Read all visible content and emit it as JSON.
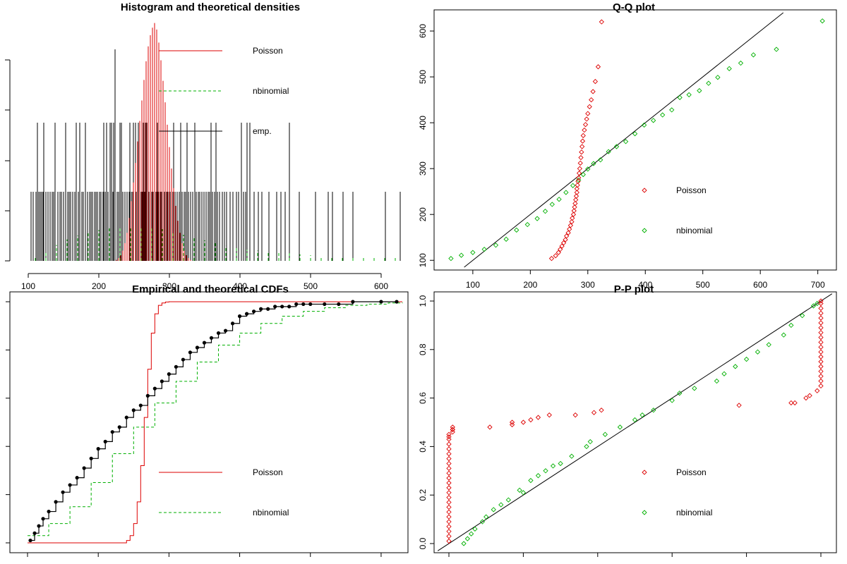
{
  "figure": {
    "panels": [
      {
        "id": "hist",
        "title": "Histogram and theoretical densities"
      },
      {
        "id": "qq",
        "title": "Q-Q plot"
      },
      {
        "id": "cdf",
        "title": "Empirical and theoretical CDFs"
      },
      {
        "id": "pp",
        "title": "P-P plot"
      }
    ]
  },
  "colors": {
    "poisson": "#dd0000",
    "nbinomial": "#00b000",
    "empirical": "#000000"
  },
  "chart_data": [
    {
      "id": "hist",
      "type": "bar",
      "title": "Histogram and theoretical densities",
      "xlim": [
        95,
        630
      ],
      "x_ticks": [
        100,
        200,
        300,
        400,
        500,
        600
      ],
      "y_axis_labels_visible": false,
      "legend": {
        "position": "top-right",
        "entries": [
          {
            "label": "Poisson",
            "style": "solid",
            "color": "#dd0000"
          },
          {
            "label": "nbinomial",
            "style": "dashed",
            "color": "#00b000"
          },
          {
            "label": "emp.",
            "style": "solid",
            "color": "#000000"
          }
        ]
      },
      "empirical_spikes": {
        "height_levels": [
          1,
          2
        ],
        "level2_at": [
          113,
          122,
          138,
          153,
          168,
          173,
          181,
          207,
          211,
          216,
          218,
          221,
          230,
          232,
          244,
          249,
          252,
          256,
          263,
          266,
          268,
          270,
          283,
          291,
          306,
          316,
          325,
          336,
          359,
          366,
          402,
          410,
          414,
          470
        ],
        "level1_at": [
          104,
          107,
          111,
          115,
          117,
          119,
          121,
          125,
          128,
          131,
          134,
          136,
          142,
          145,
          147,
          150,
          156,
          158,
          160,
          163,
          166,
          171,
          176,
          178,
          184,
          187,
          189,
          191,
          194,
          196,
          198,
          201,
          203,
          206,
          209,
          213,
          220,
          223,
          226,
          228,
          234,
          237,
          240,
          243,
          246,
          248,
          253,
          258,
          260,
          262,
          265,
          271,
          273,
          275,
          277,
          279,
          281,
          284,
          287,
          289,
          293,
          296,
          298,
          301,
          303,
          305,
          308,
          311,
          314,
          318,
          321,
          323,
          327,
          330,
          333,
          338,
          341,
          343,
          346,
          349,
          352,
          355,
          357,
          361,
          364,
          368,
          371,
          375,
          378,
          381,
          386,
          390,
          395,
          398,
          405,
          408,
          420,
          426,
          431,
          441,
          452,
          458,
          464,
          470,
          484,
          507,
          525,
          531,
          546,
          560,
          606,
          627
        ]
      },
      "poisson_density": {
        "x": [
          225,
          228,
          231,
          234,
          237,
          240,
          243,
          246,
          249,
          252,
          255,
          258,
          261,
          264,
          267,
          270,
          273,
          276,
          279,
          282,
          285,
          288,
          291,
          294,
          297,
          300,
          303,
          306,
          309,
          312,
          315,
          318,
          321,
          324,
          327,
          330
        ],
        "y": [
          0.01,
          0.03,
          0.06,
          0.11,
          0.19,
          0.3,
          0.46,
          0.64,
          0.84,
          1.05,
          1.28,
          1.5,
          1.72,
          1.94,
          2.14,
          2.3,
          2.42,
          2.5,
          2.55,
          2.48,
          2.34,
          2.15,
          1.93,
          1.7,
          1.46,
          1.22,
          0.99,
          0.78,
          0.59,
          0.43,
          0.3,
          0.19,
          0.11,
          0.06,
          0.03,
          0.01
        ]
      },
      "nbinomial_density": {
        "x": [
          110,
          125,
          140,
          155,
          170,
          185,
          200,
          215,
          230,
          245,
          260,
          275,
          290,
          305,
          320,
          335,
          350,
          365,
          380,
          395,
          410,
          425,
          440,
          455,
          470,
          485,
          500,
          515,
          530,
          545,
          560,
          575,
          590,
          605,
          620
        ],
        "y": [
          0.05,
          0.1,
          0.17,
          0.23,
          0.27,
          0.3,
          0.33,
          0.35,
          0.36,
          0.37,
          0.37,
          0.36,
          0.34,
          0.31,
          0.28,
          0.25,
          0.22,
          0.19,
          0.16,
          0.14,
          0.12,
          0.11,
          0.1,
          0.09,
          0.08,
          0.07,
          0.06,
          0.05,
          0.04,
          0.04,
          0.04,
          0.03,
          0.03,
          0.03,
          0.03
        ]
      }
    },
    {
      "id": "qq",
      "type": "scatter",
      "title": "Q-Q plot",
      "xlim": [
        40,
        725
      ],
      "ylim": [
        85,
        640
      ],
      "x_ticks": [
        100,
        200,
        300,
        400,
        500,
        600,
        700
      ],
      "y_ticks": [
        100,
        200,
        300,
        400,
        500,
        600
      ],
      "reference_line": "y = x",
      "legend": {
        "position": "bottom-right",
        "entries": [
          {
            "label": "Poisson",
            "marker": "diamond",
            "color": "#dd0000"
          },
          {
            "label": "nbinomial",
            "marker": "diamond",
            "color": "#00b000"
          }
        ]
      },
      "series": [
        {
          "name": "Poisson",
          "x": [
            237,
            244,
            249,
            252,
            255,
            258,
            261,
            263,
            266,
            268,
            270,
            272,
            273,
            275,
            276,
            277,
            278,
            279,
            280,
            281,
            281,
            282,
            283,
            284,
            285,
            286,
            287,
            288,
            289,
            290,
            291,
            292,
            294,
            296,
            298,
            300,
            303,
            306,
            309,
            313,
            318,
            324
          ],
          "y": [
            104,
            110,
            117,
            124,
            131,
            138,
            145,
            153,
            160,
            168,
            176,
            184,
            192,
            200,
            208,
            216,
            224,
            232,
            240,
            248,
            256,
            264,
            272,
            280,
            290,
            300,
            312,
            324,
            336,
            348,
            360,
            372,
            384,
            396,
            408,
            420,
            435,
            450,
            468,
            490,
            522,
            620
          ]
        },
        {
          "name": "nbinomial",
          "x": [
            62,
            80,
            100,
            120,
            140,
            158,
            176,
            195,
            212,
            226,
            238,
            250,
            262,
            274,
            284,
            292,
            300,
            310,
            322,
            336,
            350,
            366,
            382,
            398,
            414,
            430,
            446,
            460,
            476,
            494,
            510,
            526,
            546,
            566,
            588,
            628,
            708
          ],
          "y": [
            104,
            111,
            117,
            124,
            133,
            146,
            166,
            178,
            191,
            207,
            222,
            233,
            248,
            263,
            275,
            287,
            299,
            311,
            319,
            337,
            348,
            359,
            376,
            395,
            405,
            417,
            428,
            455,
            461,
            470,
            486,
            499,
            518,
            530,
            548,
            560,
            622
          ]
        }
      ]
    },
    {
      "id": "cdf",
      "type": "line",
      "title": "Empirical and theoretical CDFs",
      "xlim": [
        95,
        630
      ],
      "ylim": [
        0,
        1
      ],
      "x_ticks": [
        100,
        200,
        300,
        400,
        500,
        600
      ],
      "x_tick_labels_visible": false,
      "y_tick_labels_visible": false,
      "legend": {
        "position": "bottom-right",
        "entries": [
          {
            "label": "Poisson",
            "style": "solid",
            "color": "#dd0000"
          },
          {
            "label": "nbinomial",
            "style": "dashed",
            "color": "#00b000"
          }
        ]
      },
      "empirical": {
        "x": [
          104,
          110,
          116,
          122,
          130,
          140,
          150,
          160,
          170,
          180,
          190,
          200,
          210,
          220,
          230,
          240,
          250,
          260,
          270,
          280,
          290,
          300,
          310,
          320,
          330,
          340,
          350,
          360,
          370,
          380,
          390,
          400,
          410,
          420,
          430,
          440,
          450,
          460,
          470,
          480,
          490,
          500,
          520,
          540,
          560,
          600,
          622
        ],
        "y": [
          0.01,
          0.04,
          0.07,
          0.1,
          0.13,
          0.17,
          0.21,
          0.24,
          0.27,
          0.31,
          0.35,
          0.39,
          0.42,
          0.46,
          0.48,
          0.52,
          0.55,
          0.57,
          0.61,
          0.64,
          0.67,
          0.7,
          0.73,
          0.76,
          0.79,
          0.81,
          0.83,
          0.85,
          0.87,
          0.88,
          0.91,
          0.94,
          0.95,
          0.96,
          0.97,
          0.97,
          0.98,
          0.98,
          0.98,
          0.99,
          0.99,
          0.99,
          0.99,
          0.99,
          1.0,
          1.0,
          1.0
        ]
      },
      "poisson_cdf": {
        "x": [
          100,
          240,
          245,
          250,
          255,
          260,
          265,
          270,
          275,
          280,
          285,
          290,
          295,
          300,
          305,
          310,
          630
        ],
        "y": [
          0.0,
          0.01,
          0.03,
          0.08,
          0.17,
          0.32,
          0.52,
          0.72,
          0.87,
          0.95,
          0.985,
          0.995,
          0.999,
          1.0,
          1.0,
          1.0,
          1.0
        ]
      },
      "nbinomial_cdf": {
        "x": [
          100,
          130,
          160,
          190,
          220,
          250,
          280,
          310,
          340,
          370,
          400,
          430,
          460,
          490,
          520,
          550,
          580,
          610,
          630
        ],
        "y": [
          0.03,
          0.08,
          0.15,
          0.25,
          0.37,
          0.48,
          0.58,
          0.67,
          0.75,
          0.82,
          0.87,
          0.91,
          0.94,
          0.96,
          0.975,
          0.985,
          0.99,
          0.995,
          0.997
        ]
      }
    },
    {
      "id": "pp",
      "type": "scatter",
      "title": "P-P plot",
      "xlim": [
        -0.03,
        1.03
      ],
      "ylim": [
        -0.03,
        1.03
      ],
      "x_ticks": [
        0.0,
        0.2,
        0.4,
        0.6,
        0.8,
        1.0
      ],
      "x_tick_labels_visible": false,
      "y_ticks": [
        0.0,
        0.2,
        0.4,
        0.6,
        0.8,
        1.0
      ],
      "y_tick_labels": [
        "0.0",
        "0.2",
        "0.4",
        "0.6",
        "0.8",
        "1.0"
      ],
      "reference_line": "y = x",
      "legend": {
        "position": "bottom-right",
        "entries": [
          {
            "label": "Poisson",
            "marker": "diamond",
            "color": "#dd0000"
          },
          {
            "label": "nbinomial",
            "marker": "diamond",
            "color": "#00b000"
          }
        ]
      },
      "series": [
        {
          "name": "Poisson",
          "x": [
            0.0,
            0.0,
            0.0,
            0.0,
            0.0,
            0.0,
            0.0,
            0.0,
            0.0,
            0.0,
            0.0,
            0.0,
            0.0,
            0.0,
            0.0,
            0.0,
            0.0,
            0.0,
            0.0,
            0.0,
            0.0,
            0.0,
            0.0,
            0.0,
            0.01,
            0.01,
            0.01,
            0.01,
            0.11,
            0.17,
            0.17,
            0.2,
            0.22,
            0.24,
            0.27,
            0.34,
            0.39,
            0.41,
            0.78,
            0.92,
            0.93,
            0.96,
            0.97,
            0.99,
            1.0,
            1.0,
            1.0,
            1.0,
            1.0,
            1.0,
            1.0,
            1.0,
            1.0,
            1.0,
            1.0,
            1.0,
            1.0,
            1.0,
            1.0,
            1.0,
            1.0,
            1.0,
            1.0
          ],
          "y": [
            0.01,
            0.03,
            0.05,
            0.07,
            0.09,
            0.11,
            0.13,
            0.15,
            0.17,
            0.19,
            0.21,
            0.23,
            0.25,
            0.27,
            0.29,
            0.31,
            0.33,
            0.35,
            0.37,
            0.39,
            0.41,
            0.43,
            0.44,
            0.45,
            0.46,
            0.47,
            0.47,
            0.48,
            0.48,
            0.49,
            0.5,
            0.5,
            0.51,
            0.52,
            0.53,
            0.53,
            0.54,
            0.55,
            0.57,
            0.58,
            0.58,
            0.6,
            0.61,
            0.63,
            0.65,
            0.67,
            0.69,
            0.71,
            0.73,
            0.75,
            0.77,
            0.79,
            0.81,
            0.83,
            0.85,
            0.87,
            0.89,
            0.91,
            0.93,
            0.95,
            0.97,
            0.99,
            1.0
          ]
        },
        {
          "name": "nbinomial",
          "x": [
            0.04,
            0.05,
            0.06,
            0.07,
            0.09,
            0.1,
            0.12,
            0.14,
            0.16,
            0.19,
            0.2,
            0.22,
            0.24,
            0.26,
            0.28,
            0.3,
            0.33,
            0.37,
            0.38,
            0.42,
            0.46,
            0.5,
            0.52,
            0.55,
            0.6,
            0.62,
            0.66,
            0.72,
            0.74,
            0.77,
            0.8,
            0.83,
            0.86,
            0.9,
            0.92,
            0.95,
            0.98,
            0.99
          ],
          "y": [
            0.0,
            0.02,
            0.04,
            0.06,
            0.09,
            0.11,
            0.14,
            0.16,
            0.18,
            0.22,
            0.21,
            0.26,
            0.28,
            0.3,
            0.32,
            0.33,
            0.36,
            0.4,
            0.42,
            0.45,
            0.48,
            0.51,
            0.53,
            0.55,
            0.59,
            0.62,
            0.64,
            0.67,
            0.7,
            0.73,
            0.76,
            0.79,
            0.82,
            0.86,
            0.9,
            0.94,
            0.98,
            0.99
          ]
        }
      ]
    }
  ]
}
